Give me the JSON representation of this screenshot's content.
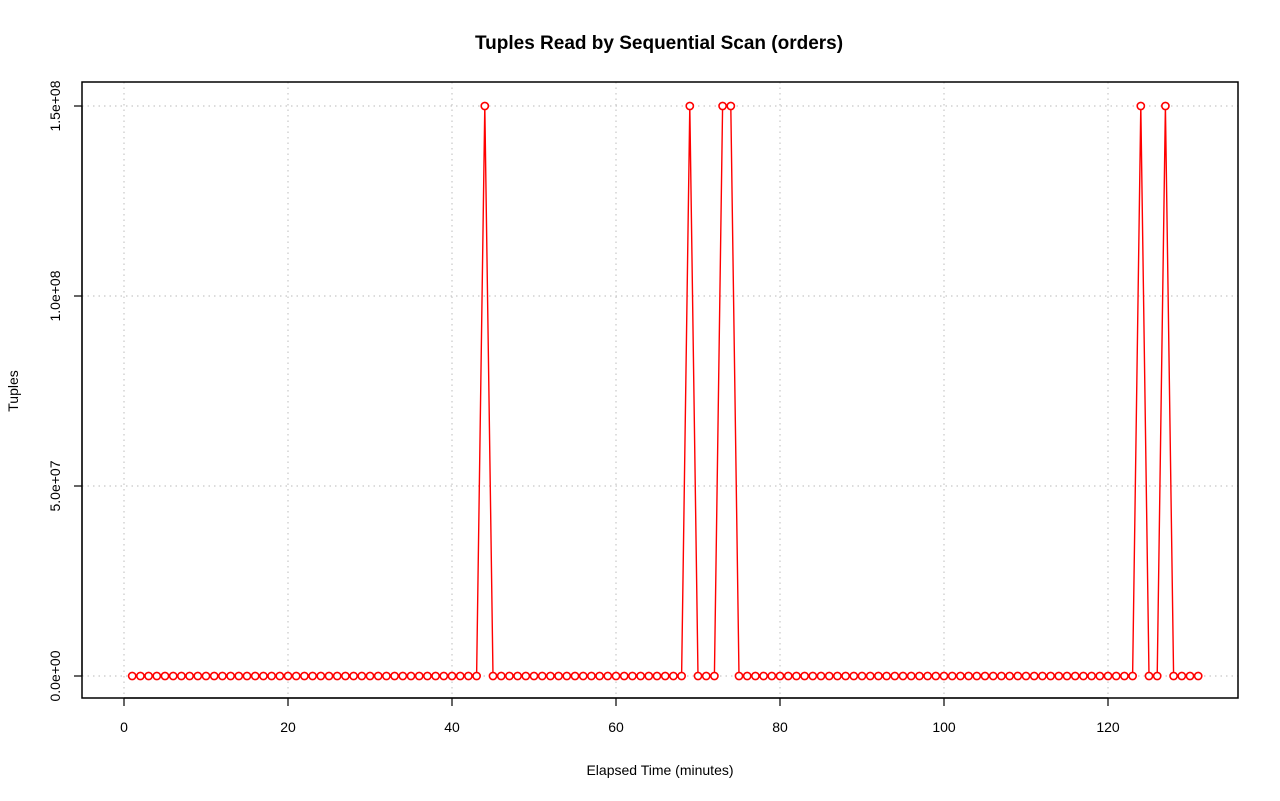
{
  "chart_data": {
    "type": "line",
    "title": "Tuples Read by Sequential Scan (orders)",
    "xlabel": "Elapsed Time (minutes)",
    "ylabel": "Tuples",
    "xlim": [
      0,
      135
    ],
    "ylim": [
      0,
      150000000
    ],
    "x_ticks": [
      0,
      20,
      40,
      60,
      80,
      100,
      120
    ],
    "y_ticks": [
      0,
      50000000,
      100000000,
      150000000
    ],
    "x_tick_labels": [
      "0",
      "20",
      "40",
      "60",
      "80",
      "100",
      "120"
    ],
    "y_tick_labels": [
      "0.0e+00",
      "5.0e+07",
      "1.0e+08",
      "1.5e+08"
    ],
    "grid": true,
    "series": [
      {
        "color": "#ff0000",
        "marker": "open-circle",
        "x_start": 1,
        "x_step": 1,
        "values": [
          0,
          0,
          0,
          0,
          0,
          0,
          0,
          0,
          0,
          0,
          0,
          0,
          0,
          0,
          0,
          0,
          0,
          0,
          0,
          0,
          0,
          0,
          0,
          0,
          0,
          0,
          0,
          0,
          0,
          0,
          0,
          0,
          0,
          0,
          0,
          0,
          0,
          0,
          0,
          0,
          0,
          0,
          0,
          150000000,
          0,
          0,
          0,
          0,
          0,
          0,
          0,
          0,
          0,
          0,
          0,
          0,
          0,
          0,
          0,
          0,
          0,
          0,
          0,
          0,
          0,
          0,
          0,
          0,
          150000000,
          0,
          0,
          0,
          150000000,
          150000000,
          0,
          0,
          0,
          0,
          0,
          0,
          0,
          0,
          0,
          0,
          0,
          0,
          0,
          0,
          0,
          0,
          0,
          0,
          0,
          0,
          0,
          0,
          0,
          0,
          0,
          0,
          0,
          0,
          0,
          0,
          0,
          0,
          0,
          0,
          0,
          0,
          0,
          0,
          0,
          0,
          0,
          0,
          0,
          0,
          0,
          0,
          0,
          0,
          0,
          150000000,
          0,
          0,
          150000000,
          0,
          0,
          0,
          0
        ]
      }
    ]
  }
}
